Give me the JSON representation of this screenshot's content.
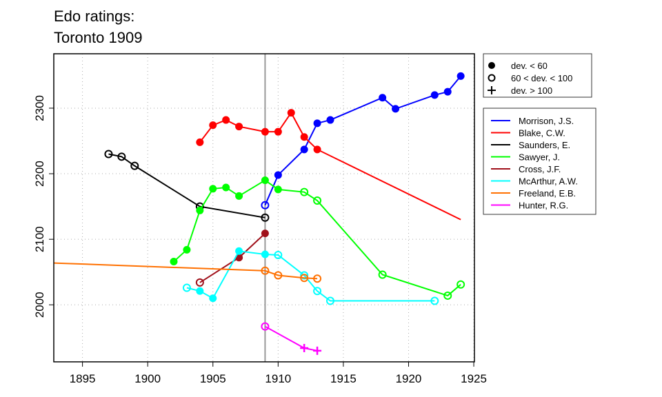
{
  "chart_data": {
    "type": "line",
    "title_lines": [
      "Edo ratings:",
      "Toronto 1909"
    ],
    "xlabel": "",
    "ylabel": "",
    "xlim": [
      1892.8,
      1925.05
    ],
    "ylim": [
      1913,
      2383
    ],
    "x_ticks": [
      1895,
      1900,
      1905,
      1910,
      1915,
      1920,
      1925
    ],
    "y_ticks": [
      2000,
      2100,
      2200,
      2300
    ],
    "grid": true,
    "reference_line_x": 1909,
    "marker_legend": {
      "placement": "top-right-outside",
      "entries": [
        {
          "symbol": "filled",
          "label": "dev. < 60"
        },
        {
          "symbol": "open",
          "label": "60 < dev. < 100"
        },
        {
          "symbol": "plus",
          "label": "dev. > 100"
        }
      ]
    },
    "series": [
      {
        "name": "Morrison, J.S.",
        "color": "#0000ff",
        "points": [
          [
            1909,
            2152,
            "open"
          ],
          [
            1910,
            2198,
            "filled"
          ],
          [
            1912,
            2237,
            "filled"
          ],
          [
            1913,
            2277,
            "filled"
          ],
          [
            1914,
            2282,
            "filled"
          ],
          [
            1918,
            2316,
            "filled"
          ],
          [
            1919,
            2299,
            "filled"
          ],
          [
            1922,
            2320,
            "filled"
          ],
          [
            1923,
            2325,
            "filled"
          ],
          [
            1924,
            2349,
            "filled"
          ]
        ]
      },
      {
        "name": "Blake, C.W.",
        "color": "#ff0000",
        "points": [
          [
            1904,
            2248,
            "filled"
          ],
          [
            1905,
            2274,
            "filled"
          ],
          [
            1906,
            2282,
            "filled"
          ],
          [
            1907,
            2272,
            "filled"
          ],
          [
            1909,
            2264,
            "filled"
          ],
          [
            1910,
            2264,
            "filled"
          ],
          [
            1911,
            2293,
            "filled"
          ],
          [
            1912,
            2256,
            "filled"
          ],
          [
            1913,
            2237,
            "filled"
          ],
          [
            1924,
            2130,
            "none"
          ]
        ]
      },
      {
        "name": "Saunders, E.",
        "color": "#000000",
        "points": [
          [
            1897,
            2230,
            "open"
          ],
          [
            1898,
            2226,
            "open"
          ],
          [
            1899,
            2212,
            "open"
          ],
          [
            1904,
            2150,
            "open"
          ],
          [
            1909,
            2133,
            "open"
          ]
        ]
      },
      {
        "name": "Sawyer, J.",
        "color": "#00ff00",
        "points": [
          [
            1902,
            2066,
            "filled"
          ],
          [
            1903,
            2084,
            "filled"
          ],
          [
            1904,
            2144,
            "filled"
          ],
          [
            1905,
            2177,
            "filled"
          ],
          [
            1906,
            2179,
            "filled"
          ],
          [
            1907,
            2166,
            "filled"
          ],
          [
            1909,
            2190,
            "filled"
          ],
          [
            1910,
            2176,
            "filled"
          ],
          [
            1912,
            2172,
            "open"
          ],
          [
            1913,
            2159,
            "open"
          ],
          [
            1918,
            2046,
            "open"
          ],
          [
            1923,
            2014,
            "open"
          ],
          [
            1924,
            2031,
            "open"
          ]
        ]
      },
      {
        "name": "Cross, J.F.",
        "color": "#a0101a",
        "points": [
          [
            1904,
            2034,
            "open"
          ],
          [
            1907,
            2072,
            "filled"
          ],
          [
            1909,
            2109,
            "filled"
          ]
        ]
      },
      {
        "name": "McArthur, A.W.",
        "color": "#00ffff",
        "points": [
          [
            1903,
            2026,
            "open"
          ],
          [
            1904,
            2021,
            "filled"
          ],
          [
            1905,
            2010,
            "filled"
          ],
          [
            1907,
            2082,
            "filled"
          ],
          [
            1909,
            2077,
            "filled"
          ],
          [
            1910,
            2076,
            "open"
          ],
          [
            1912,
            2045,
            "open"
          ],
          [
            1913,
            2021,
            "open"
          ],
          [
            1914,
            2006,
            "open"
          ],
          [
            1922,
            2006,
            "open"
          ]
        ]
      },
      {
        "name": "Freeland, E.B.",
        "color": "#ff7000",
        "points": [
          [
            1892.5,
            2064,
            "none"
          ],
          [
            1909,
            2052,
            "open"
          ],
          [
            1910,
            2045,
            "open"
          ],
          [
            1912,
            2041,
            "open"
          ],
          [
            1913,
            2040,
            "open"
          ]
        ]
      },
      {
        "name": "Hunter, R.G.",
        "color": "#ff00ff",
        "points": [
          [
            1909,
            1967,
            "open"
          ],
          [
            1912,
            1934,
            "plus"
          ],
          [
            1913,
            1930,
            "plus"
          ]
        ]
      }
    ]
  }
}
